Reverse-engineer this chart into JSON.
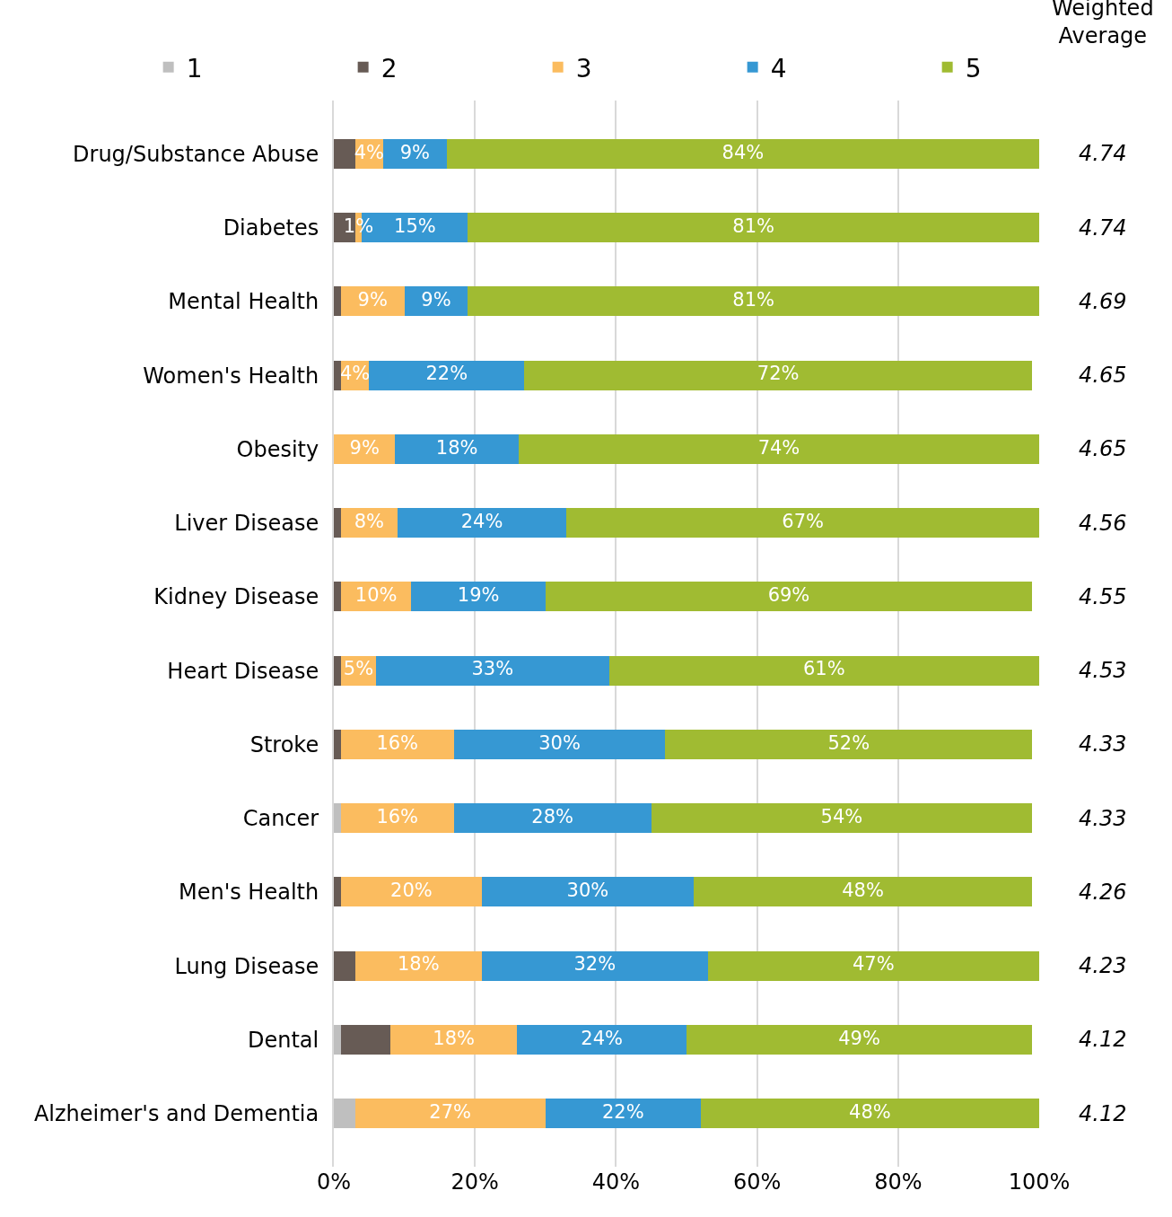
{
  "chart_data": {
    "type": "bar",
    "orientation": "horizontal",
    "stacked": true,
    "categories": [
      "Drug/Substance Abuse",
      "Diabetes",
      "Mental Health",
      "Women's Health",
      "Obesity",
      "Liver Disease",
      "Kidney Disease",
      "Heart Disease",
      "Stroke",
      "Cancer",
      "Men's Health",
      "Lung Disease",
      "Dental",
      "Alzheimer's and Dementia"
    ],
    "series": [
      {
        "name": "1",
        "color": "#bfbfbf",
        "values": [
          0,
          0,
          0,
          0,
          0,
          0,
          0,
          0,
          0,
          1,
          0,
          0,
          1,
          3
        ]
      },
      {
        "name": "2",
        "color": "#675b55",
        "values": [
          3,
          3,
          1,
          1,
          0,
          1,
          1,
          1,
          1,
          0,
          1,
          3,
          7,
          0
        ]
      },
      {
        "name": "3",
        "color": "#fbbc5f",
        "values": [
          4,
          1,
          9,
          4,
          8.7,
          8,
          10,
          5,
          16,
          16,
          20,
          18,
          18,
          27
        ],
        "value_labels": [
          "4%",
          "1%",
          "9%",
          "4%",
          "9%",
          "8%",
          "10%",
          "5%",
          "16%",
          "16%",
          "20%",
          "18%",
          "18%",
          "27%"
        ]
      },
      {
        "name": "4",
        "color": "#3698d3",
        "values": [
          9,
          15,
          9,
          22,
          17.5,
          24,
          19,
          33,
          30,
          28,
          30,
          32,
          24,
          22
        ],
        "value_labels": [
          "9%",
          "15%",
          "9%",
          "22%",
          "18%",
          "24%",
          "19%",
          "33%",
          "30%",
          "28%",
          "30%",
          "32%",
          "24%",
          "22%"
        ]
      },
      {
        "name": "5",
        "color": "#a0bb32",
        "values": [
          84,
          81,
          81,
          72,
          73.8,
          67,
          69,
          61,
          52,
          54,
          48,
          47,
          49,
          48
        ],
        "value_labels": [
          "84%",
          "81%",
          "81%",
          "72%",
          "74%",
          "67%",
          "69%",
          "61%",
          "52%",
          "54%",
          "48%",
          "47%",
          "49%",
          "48%"
        ]
      }
    ],
    "xlim": [
      0,
      100
    ],
    "xticks": [
      {
        "value": 0,
        "label": "0%"
      },
      {
        "value": 20,
        "label": "20%"
      },
      {
        "value": 40,
        "label": "40%"
      },
      {
        "value": 60,
        "label": "60%"
      },
      {
        "value": 80,
        "label": "80%"
      },
      {
        "value": 100,
        "label": "100%"
      }
    ],
    "grid": "x",
    "legend": "top",
    "annotations": [
      "Weighted Average",
      "4.74",
      "4.74",
      "4.69",
      "4.65",
      "4.65",
      "4.56",
      "4.55",
      "4.53",
      "4.33",
      "4.33",
      "4.26",
      "4.23",
      "4.12",
      "4.12"
    ]
  }
}
